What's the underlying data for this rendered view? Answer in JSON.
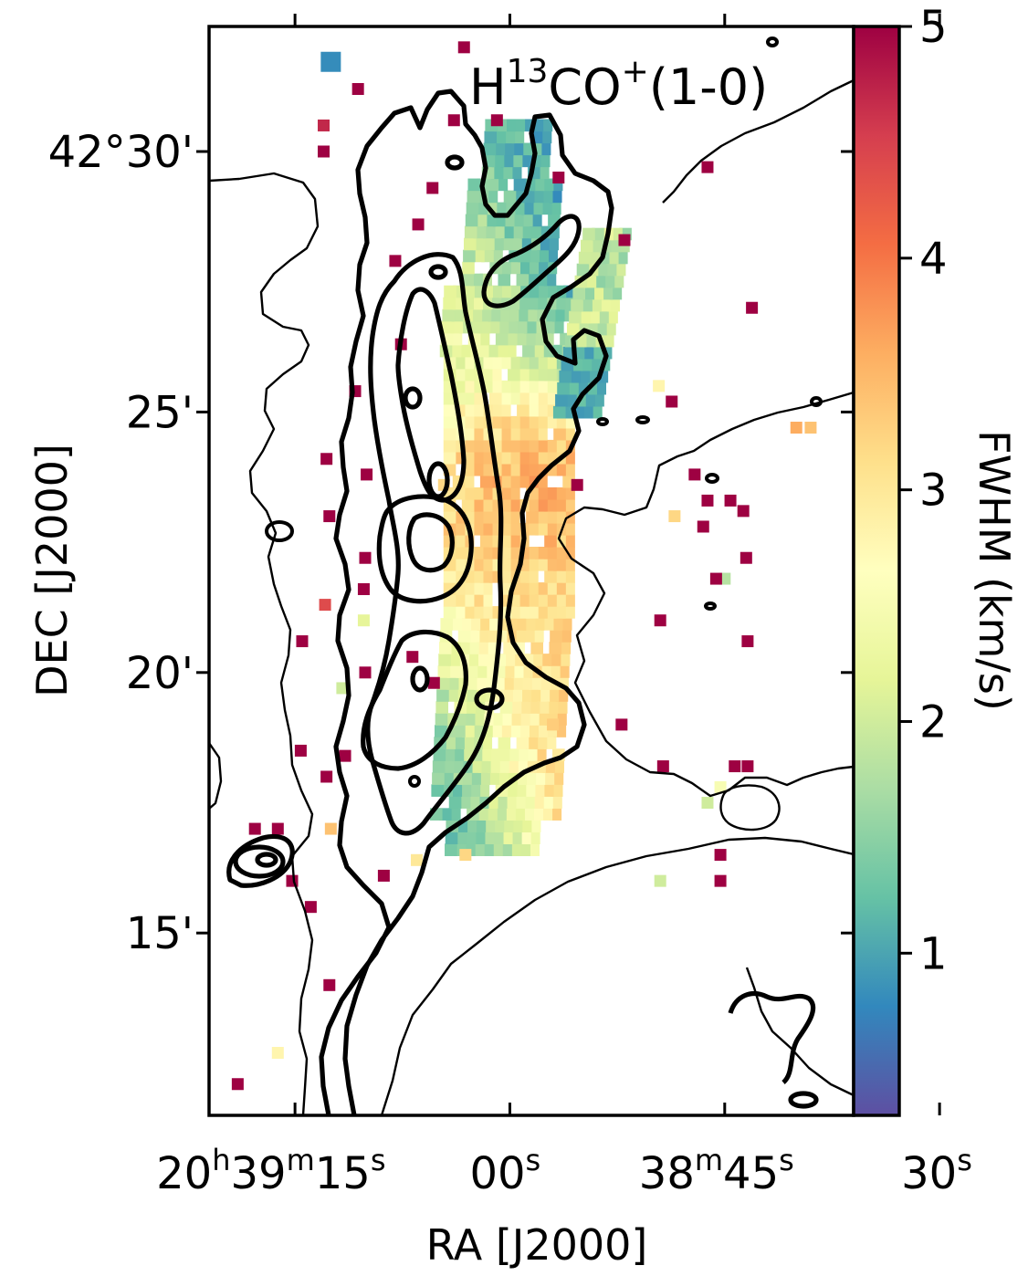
{
  "chart_data": {
    "type": "heatmap",
    "title": {
      "molecule_base": "H",
      "molecule_sup": "13",
      "molecule_mid": "CO",
      "molecule_sup2": "+",
      "transition": "(1-0)"
    },
    "xlabel": "RA [J2000]",
    "ylabel": "DEC [J2000]",
    "colorbar": {
      "label": "FWHM (km/s)",
      "colormap": "Spectral_r",
      "range": [
        0.3,
        5.0
      ],
      "ticks": [
        "1",
        "2",
        "3",
        "4",
        "5"
      ],
      "tick_values": [
        1,
        2,
        3,
        4,
        5
      ]
    },
    "x_ticks": [
      {
        "parts": [
          [
            "20",
            ""
          ],
          [
            "h",
            "sup"
          ],
          [
            "39",
            ""
          ],
          [
            "m",
            "sup"
          ],
          [
            "15",
            ""
          ],
          [
            "s",
            "sup"
          ]
        ]
      },
      {
        "parts": [
          [
            "00",
            ""
          ],
          [
            "s",
            "sup"
          ]
        ]
      },
      {
        "parts": [
          [
            "38",
            ""
          ],
          [
            "m",
            "sup"
          ],
          [
            "45",
            ""
          ],
          [
            "s",
            "sup"
          ]
        ]
      },
      {
        "parts": [
          [
            "30",
            ""
          ],
          [
            "s",
            "sup"
          ]
        ]
      }
    ],
    "y_ticks": [
      "42°30'",
      "25'",
      "20'",
      "15'"
    ],
    "x_range_s": [
      21,
      -24
    ],
    "y_range_arcmin": [
      11.5,
      32.4
    ],
    "filament_fwhm_cells": [
      {
        "x": 0.0,
        "y": 23.4,
        "v": 4.0
      },
      {
        "x": 0.4,
        "y": 21.5,
        "v": 2.6
      },
      {
        "x": -0.9,
        "y": 19.0,
        "v": 3.4
      },
      {
        "x": 1.5,
        "y": 26.5,
        "v": 2.2
      },
      {
        "x": -1.7,
        "y": 28.0,
        "v": 1.0
      },
      {
        "x": 2.4,
        "y": 17.6,
        "v": 1.2
      }
    ],
    "isolated_cells": [
      {
        "x": 12.5,
        "y": 31.8,
        "v": 0.8
      },
      {
        "x": 13.0,
        "y": 30.5,
        "v": 4.7
      },
      {
        "x": 13.0,
        "y": 30.0,
        "v": 5.0
      },
      {
        "x": 10.6,
        "y": 31.2,
        "v": 5.0
      },
      {
        "x": 3.2,
        "y": 32.0,
        "v": 5.0
      },
      {
        "x": 3.9,
        "y": 30.6,
        "v": 5.0
      },
      {
        "x": 0.9,
        "y": 30.6,
        "v": 5.0
      },
      {
        "x": -3.4,
        "y": 29.5,
        "v": 5.0
      },
      {
        "x": 5.4,
        "y": 29.3,
        "v": 5.0
      },
      {
        "x": 6.4,
        "y": 28.6,
        "v": 5.0
      },
      {
        "x": 8.0,
        "y": 27.9,
        "v": 5.0
      },
      {
        "x": 7.6,
        "y": 26.3,
        "v": 5.0
      },
      {
        "x": -8.0,
        "y": 28.3,
        "v": 5.0
      },
      {
        "x": -13.8,
        "y": 29.7,
        "v": 5.0
      },
      {
        "x": -10.4,
        "y": 25.5,
        "v": 2.8
      },
      {
        "x": -16.9,
        "y": 27.0,
        "v": 5.0
      },
      {
        "x": -11.3,
        "y": 25.2,
        "v": 5.0
      },
      {
        "x": 10.8,
        "y": 25.4,
        "v": 5.0
      },
      {
        "x": 12.8,
        "y": 24.1,
        "v": 5.0
      },
      {
        "x": 10.0,
        "y": 23.8,
        "v": 5.0
      },
      {
        "x": 4.6,
        "y": 23.6,
        "v": 3.2
      },
      {
        "x": -4.7,
        "y": 23.6,
        "v": 5.0
      },
      {
        "x": -12.9,
        "y": 23.8,
        "v": 5.0
      },
      {
        "x": -13.8,
        "y": 23.3,
        "v": 5.0
      },
      {
        "x": -15.4,
        "y": 23.3,
        "v": 5.0
      },
      {
        "x": -16.3,
        "y": 23.1,
        "v": 5.0
      },
      {
        "x": -16.5,
        "y": 22.2,
        "v": 5.0
      },
      {
        "x": -11.5,
        "y": 23.0,
        "v": 3.2
      },
      {
        "x": -20.0,
        "y": 24.7,
        "v": 3.6
      },
      {
        "x": -21.0,
        "y": 24.7,
        "v": 3.4
      },
      {
        "x": 10.1,
        "y": 22.2,
        "v": 5.0
      },
      {
        "x": 12.6,
        "y": 23.0,
        "v": 5.0
      },
      {
        "x": 10.2,
        "y": 21.6,
        "v": 5.0
      },
      {
        "x": 12.9,
        "y": 21.3,
        "v": 4.4
      },
      {
        "x": 10.2,
        "y": 21.0,
        "v": 2.2
      },
      {
        "x": -15.0,
        "y": 21.8,
        "v": 1.8
      },
      {
        "x": -10.5,
        "y": 21.0,
        "v": 5.0
      },
      {
        "x": -13.5,
        "y": 22.8,
        "v": 5.0
      },
      {
        "x": -14.4,
        "y": 21.8,
        "v": 5.0
      },
      {
        "x": -16.6,
        "y": 20.6,
        "v": 5.0
      },
      {
        "x": 5.3,
        "y": 19.8,
        "v": 5.0
      },
      {
        "x": 6.8,
        "y": 20.3,
        "v": 5.0
      },
      {
        "x": 10.1,
        "y": 20.0,
        "v": 5.0
      },
      {
        "x": 11.7,
        "y": 19.7,
        "v": 2.0
      },
      {
        "x": 12.8,
        "y": 18.0,
        "v": 5.0
      },
      {
        "x": 12.5,
        "y": 17.0,
        "v": 3.4
      },
      {
        "x": 11.5,
        "y": 18.4,
        "v": 5.0
      },
      {
        "x": -3.0,
        "y": 19.0,
        "v": 3.3
      },
      {
        "x": -7.8,
        "y": 19.0,
        "v": 5.0
      },
      {
        "x": -10.7,
        "y": 18.2,
        "v": 5.0
      },
      {
        "x": -15.7,
        "y": 18.2,
        "v": 5.0
      },
      {
        "x": -16.6,
        "y": 18.2,
        "v": 5.0
      },
      {
        "x": -14.7,
        "y": 17.8,
        "v": 2.5
      },
      {
        "x": -13.8,
        "y": 17.5,
        "v": 2.0
      },
      {
        "x": 14.5,
        "y": 20.6,
        "v": 5.0
      },
      {
        "x": 14.6,
        "y": 18.5,
        "v": 5.0
      },
      {
        "x": 16.2,
        "y": 17.0,
        "v": 5.0
      },
      {
        "x": 17.8,
        "y": 17.0,
        "v": 5.0
      },
      {
        "x": 15.2,
        "y": 16.0,
        "v": 5.0
      },
      {
        "x": 6.5,
        "y": 16.4,
        "v": 3.0
      },
      {
        "x": 8.8,
        "y": 16.1,
        "v": 5.0
      },
      {
        "x": 3.1,
        "y": 16.5,
        "v": 3.2
      },
      {
        "x": -10.5,
        "y": 16.0,
        "v": 2.0
      },
      {
        "x": -14.7,
        "y": 16.0,
        "v": 5.0
      },
      {
        "x": -14.7,
        "y": 16.5,
        "v": 5.0
      },
      {
        "x": 13.9,
        "y": 15.5,
        "v": 5.0
      },
      {
        "x": 12.6,
        "y": 14.0,
        "v": 5.0
      },
      {
        "x": 16.2,
        "y": 12.7,
        "v": 2.8
      },
      {
        "x": 19.0,
        "y": 12.1,
        "v": 5.0
      }
    ]
  }
}
